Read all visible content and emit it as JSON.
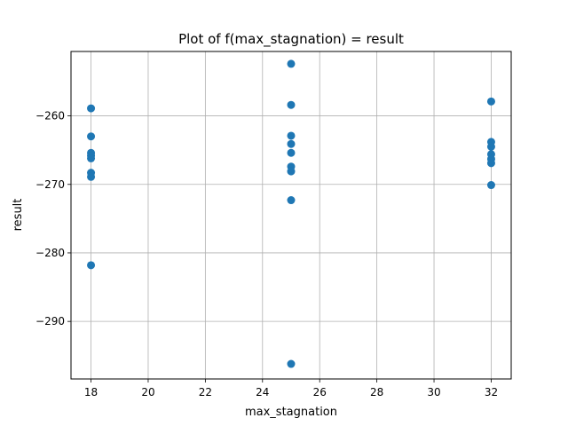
{
  "chart_data": {
    "type": "scatter",
    "title": "Plot of f(max_stagnation) = result",
    "xlabel": "max_stagnation",
    "ylabel": "result",
    "xlim": [
      17.3,
      32.7
    ],
    "ylim": [
      -298.4,
      -250.6
    ],
    "xticks": [
      18,
      20,
      22,
      24,
      26,
      28,
      30,
      32
    ],
    "xtick_labels": [
      "18",
      "20",
      "22",
      "24",
      "26",
      "28",
      "30",
      "32"
    ],
    "yticks": [
      -290,
      -280,
      -270,
      -260
    ],
    "ytick_labels": [
      "−290",
      "−280",
      "−270",
      "−260"
    ],
    "grid": true,
    "color": "#1f77b4",
    "points": [
      {
        "x": 18,
        "y": -258.9
      },
      {
        "x": 18,
        "y": -263.0
      },
      {
        "x": 18,
        "y": -265.4
      },
      {
        "x": 18,
        "y": -265.8
      },
      {
        "x": 18,
        "y": -266.2
      },
      {
        "x": 18,
        "y": -268.3
      },
      {
        "x": 18,
        "y": -268.9
      },
      {
        "x": 18,
        "y": -281.8
      },
      {
        "x": 25,
        "y": -252.4
      },
      {
        "x": 25,
        "y": -258.4
      },
      {
        "x": 25,
        "y": -262.9
      },
      {
        "x": 25,
        "y": -264.1
      },
      {
        "x": 25,
        "y": -265.4
      },
      {
        "x": 25,
        "y": -267.4
      },
      {
        "x": 25,
        "y": -268.1
      },
      {
        "x": 25,
        "y": -272.3
      },
      {
        "x": 25,
        "y": -296.2
      },
      {
        "x": 32,
        "y": -257.9
      },
      {
        "x": 32,
        "y": -263.8
      },
      {
        "x": 32,
        "y": -264.5
      },
      {
        "x": 32,
        "y": -265.6
      },
      {
        "x": 32,
        "y": -266.3
      },
      {
        "x": 32,
        "y": -266.9
      },
      {
        "x": 32,
        "y": -270.1
      }
    ]
  }
}
